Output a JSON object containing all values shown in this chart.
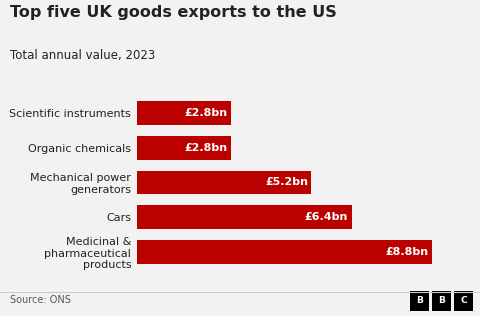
{
  "title": "Top five UK goods exports to the US",
  "subtitle": "Total annual value, 2023",
  "source": "Source: ONS",
  "categories": [
    "Scientific instruments",
    "Organic chemicals",
    "Mechanical power\ngenerators",
    "Cars",
    "Medicinal &\npharmaceutical\nproducts"
  ],
  "values": [
    2.8,
    2.8,
    5.2,
    6.4,
    8.8
  ],
  "labels": [
    "£2.8bn",
    "£2.8bn",
    "£5.2bn",
    "£6.4bn",
    "£8.8bn"
  ],
  "bar_color": "#bb0000",
  "background_color": "#f2f2f2",
  "text_color": "#222222",
  "label_color": "#ffffff",
  "xlim": [
    0,
    9.8
  ],
  "title_fontsize": 11.5,
  "subtitle_fontsize": 8.5,
  "label_fontsize": 8,
  "ytick_fontsize": 8,
  "source_fontsize": 7
}
